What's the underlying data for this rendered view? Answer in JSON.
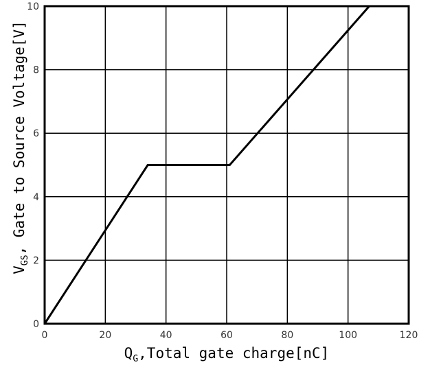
{
  "chart_data": {
    "type": "line",
    "title": "",
    "xlabel": {
      "symbol": "Q",
      "subscript": "G",
      "text": ",Total gate charge[nC]"
    },
    "ylabel": {
      "symbol": "V",
      "subscript": "GS",
      "text": ", Gate to Source Voltage[V]"
    },
    "xlim": [
      0,
      120
    ],
    "ylim": [
      0,
      10
    ],
    "xticks": [
      0,
      20,
      40,
      60,
      80,
      100,
      120
    ],
    "yticks": [
      0,
      2,
      4,
      6,
      8,
      10
    ],
    "grid": true,
    "series": [
      {
        "x": [
          0,
          34,
          61,
          107
        ],
        "y": [
          0,
          5,
          5,
          10
        ]
      }
    ],
    "colors": {
      "line": "#000000",
      "grid": "#000000",
      "background": "#ffffff"
    }
  }
}
